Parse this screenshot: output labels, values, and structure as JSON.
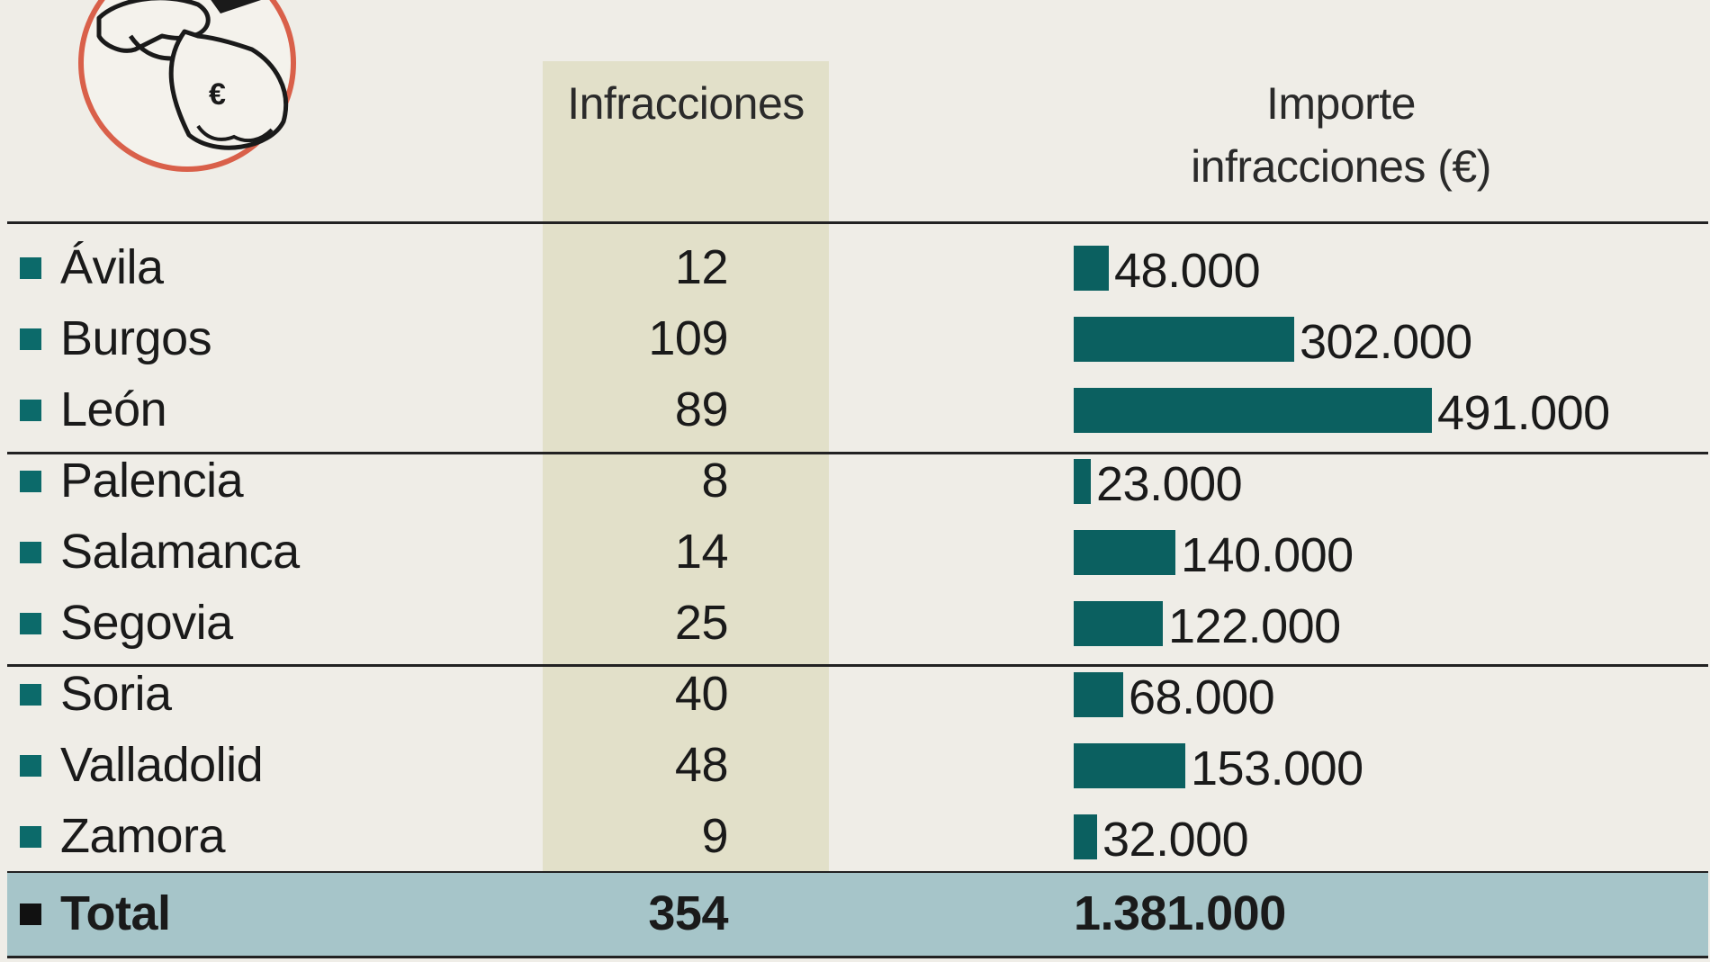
{
  "headers": {
    "infracciones": "Infracciones",
    "importe_line1": "Importe",
    "importe_line2": "infracciones (€)"
  },
  "colors": {
    "background": "#efede7",
    "column_highlight": "#e2e0c9",
    "bar": "#0b6060",
    "marker": "#0c6a6a",
    "total_band": "#a6c5c9",
    "illustration_ring": "#d9604a"
  },
  "illustration": {
    "icon": "money-bag-euro-icon",
    "symbol": "€"
  },
  "chart_data": {
    "type": "bar",
    "categories": [
      "Ávila",
      "Burgos",
      "León",
      "Palencia",
      "Salamanca",
      "Segovia",
      "Soria",
      "Valladolid",
      "Zamora"
    ],
    "infracciones": [
      "12",
      "109",
      "89",
      "8",
      "14",
      "25",
      "40",
      "48",
      "9"
    ],
    "importe_labels": [
      "48.000",
      "302.000",
      "491.000",
      "23.000",
      "140.000",
      "122.000",
      "68.000",
      "153.000",
      "32.000"
    ],
    "importe_values": [
      48000,
      302000,
      491000,
      23000,
      140000,
      122000,
      68000,
      153000,
      32000
    ],
    "xlim": [
      0,
      491000
    ],
    "total": {
      "label": "Total",
      "infracciones": "354",
      "importe": "1.381.000"
    }
  }
}
